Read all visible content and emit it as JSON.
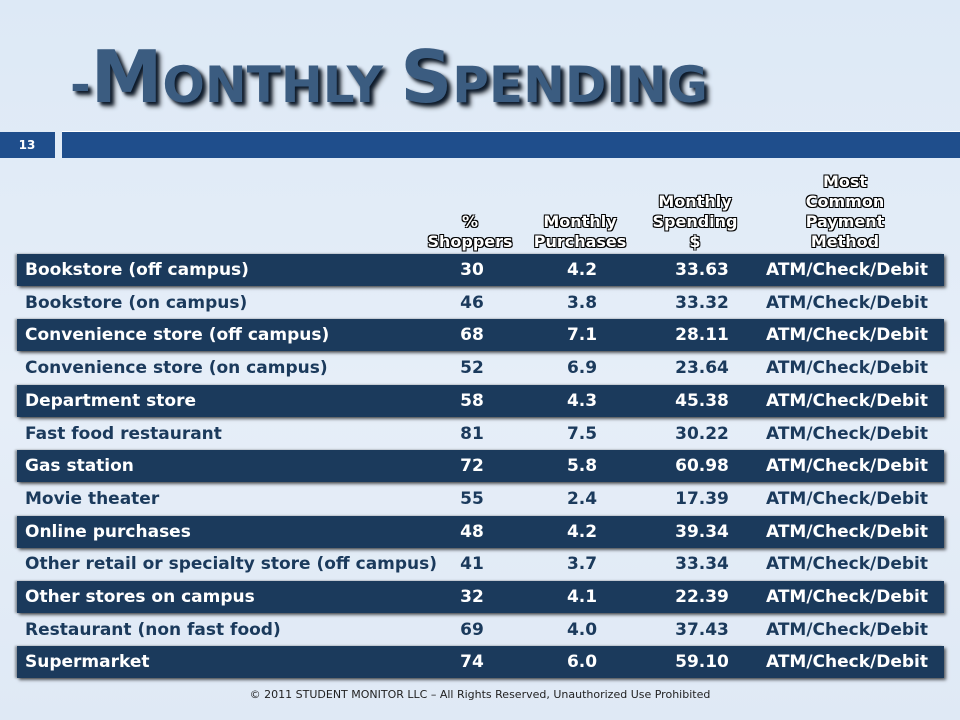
{
  "slide": {
    "title_dash": "-",
    "title_cap1": "M",
    "title_rest1": "ONTHLY ",
    "title_cap2": "S",
    "title_rest2": "PENDING",
    "number": "13",
    "footer": "© 2011 STUDENT MONITOR LLC – All Rights Reserved, Unauthorized Use Prohibited"
  },
  "table": {
    "headers": [
      "% Shoppers",
      "Monthly Purchases",
      "Monthly Spending $",
      "Most Common Payment Method"
    ],
    "rows": [
      {
        "name": "Bookstore (off campus)",
        "pct": "30",
        "purchases": "4.2",
        "spending": "33.63",
        "method": "ATM/Check/Debit"
      },
      {
        "name": "Bookstore (on campus)",
        "pct": "46",
        "purchases": "3.8",
        "spending": "33.32",
        "method": "ATM/Check/Debit"
      },
      {
        "name": "Convenience store (off campus)",
        "pct": "68",
        "purchases": "7.1",
        "spending": "28.11",
        "method": "ATM/Check/Debit"
      },
      {
        "name": "Convenience store (on campus)",
        "pct": "52",
        "purchases": "6.9",
        "spending": "23.64",
        "method": "ATM/Check/Debit"
      },
      {
        "name": "Department store",
        "pct": "58",
        "purchases": "4.3",
        "spending": "45.38",
        "method": "ATM/Check/Debit"
      },
      {
        "name": "Fast food restaurant",
        "pct": "81",
        "purchases": "7.5",
        "spending": "30.22",
        "method": "ATM/Check/Debit"
      },
      {
        "name": "Gas station",
        "pct": "72",
        "purchases": "5.8",
        "spending": "60.98",
        "method": "ATM/Check/Debit"
      },
      {
        "name": "Movie theater",
        "pct": "55",
        "purchases": "2.4",
        "spending": "17.39",
        "method": "ATM/Check/Debit"
      },
      {
        "name": "Online purchases",
        "pct": "48",
        "purchases": "4.2",
        "spending": "39.34",
        "method": "ATM/Check/Debit"
      },
      {
        "name": "Other retail or specialty store (off campus)",
        "pct": "41",
        "purchases": "3.7",
        "spending": "33.34",
        "method": "ATM/Check/Debit"
      },
      {
        "name": "Other stores on campus",
        "pct": "32",
        "purchases": "4.1",
        "spending": "22.39",
        "method": "ATM/Check/Debit"
      },
      {
        "name": "Restaurant (non fast food)",
        "pct": "69",
        "purchases": "4.0",
        "spending": "37.43",
        "method": "ATM/Check/Debit"
      },
      {
        "name": "Supermarket",
        "pct": "74",
        "purchases": "6.0",
        "spending": "59.10",
        "method": "ATM/Check/Debit"
      }
    ]
  }
}
